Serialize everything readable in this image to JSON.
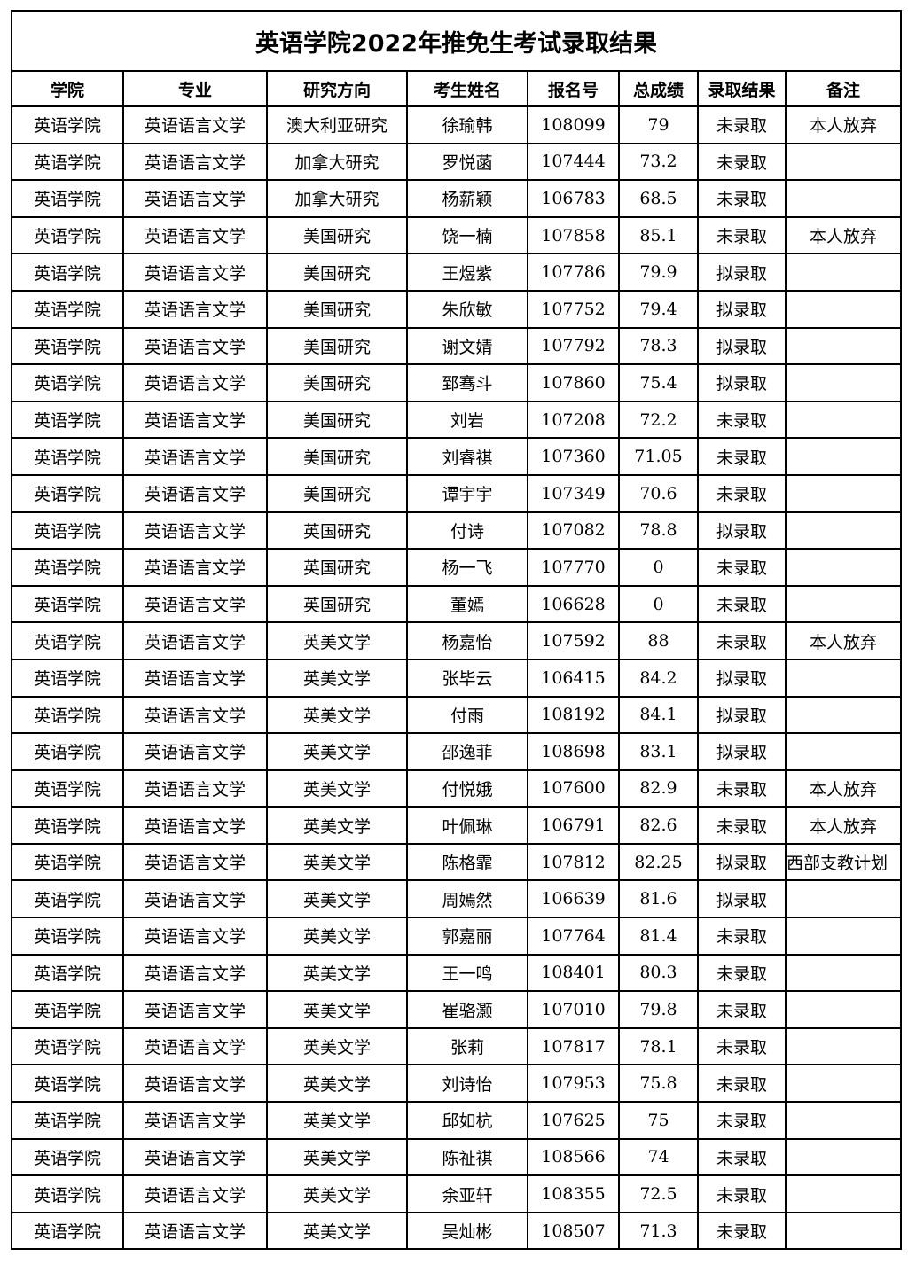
{
  "title": "英语学院2022年推免生考试录取结果",
  "headers": [
    "学院",
    "专业",
    "研究方向",
    "考生姓名",
    "报名号",
    "总成绩",
    "录取结果",
    "备注"
  ],
  "rows": [
    [
      "英语学院",
      "英语语言文学",
      "澳大利亚研究",
      "徐瑜韩",
      "108099",
      "79",
      "未录取",
      "本人放弃"
    ],
    [
      "英语学院",
      "英语语言文学",
      "加拿大研究",
      "罗悦菡",
      "107444",
      "73.2",
      "未录取",
      ""
    ],
    [
      "英语学院",
      "英语语言文学",
      "加拿大研究",
      "杨薪颖",
      "106783",
      "68.5",
      "未录取",
      ""
    ],
    [
      "英语学院",
      "英语语言文学",
      "美国研究",
      "饶一楠",
      "107858",
      "85.1",
      "未录取",
      "本人放弃"
    ],
    [
      "英语学院",
      "英语语言文学",
      "美国研究",
      "王煜紫",
      "107786",
      "79.9",
      "拟录取",
      ""
    ],
    [
      "英语学院",
      "英语语言文学",
      "美国研究",
      "朱欣敏",
      "107752",
      "79.4",
      "拟录取",
      ""
    ],
    [
      "英语学院",
      "英语语言文学",
      "美国研究",
      "谢文婧",
      "107792",
      "78.3",
      "拟录取",
      ""
    ],
    [
      "英语学院",
      "英语语言文学",
      "美国研究",
      "郅骞斗",
      "107860",
      "75.4",
      "拟录取",
      ""
    ],
    [
      "英语学院",
      "英语语言文学",
      "美国研究",
      "刘岩",
      "107208",
      "72.2",
      "未录取",
      ""
    ],
    [
      "英语学院",
      "英语语言文学",
      "美国研究",
      "刘睿祺",
      "107360",
      "71.05",
      "未录取",
      ""
    ],
    [
      "英语学院",
      "英语语言文学",
      "美国研究",
      "谭宇宇",
      "107349",
      "70.6",
      "未录取",
      ""
    ],
    [
      "英语学院",
      "英语语言文学",
      "英国研究",
      "付诗",
      "107082",
      "78.8",
      "拟录取",
      ""
    ],
    [
      "英语学院",
      "英语语言文学",
      "英国研究",
      "杨一飞",
      "107770",
      "0",
      "未录取",
      ""
    ],
    [
      "英语学院",
      "英语语言文学",
      "英国研究",
      "董嫣",
      "106628",
      "0",
      "未录取",
      ""
    ],
    [
      "英语学院",
      "英语语言文学",
      "英美文学",
      "杨嘉怡",
      "107592",
      "88",
      "未录取",
      "本人放弃"
    ],
    [
      "英语学院",
      "英语语言文学",
      "英美文学",
      "张毕云",
      "106415",
      "84.2",
      "拟录取",
      ""
    ],
    [
      "英语学院",
      "英语语言文学",
      "英美文学",
      "付雨",
      "108192",
      "84.1",
      "拟录取",
      ""
    ],
    [
      "英语学院",
      "英语语言文学",
      "英美文学",
      "邵逸菲",
      "108698",
      "83.1",
      "拟录取",
      ""
    ],
    [
      "英语学院",
      "英语语言文学",
      "英美文学",
      "付悦娥",
      "107600",
      "82.9",
      "未录取",
      "本人放弃"
    ],
    [
      "英语学院",
      "英语语言文学",
      "英美文学",
      "叶佩琳",
      "106791",
      "82.6",
      "未录取",
      "本人放弃"
    ],
    [
      "英语学院",
      "英语语言文学",
      "英美文学",
      "陈格霏",
      "107812",
      "82.25",
      "拟录取",
      "西部支教计划"
    ],
    [
      "英语学院",
      "英语语言文学",
      "英美文学",
      "周嫣然",
      "106639",
      "81.6",
      "拟录取",
      ""
    ],
    [
      "英语学院",
      "英语语言文学",
      "英美文学",
      "郭嘉丽",
      "107764",
      "81.4",
      "未录取",
      ""
    ],
    [
      "英语学院",
      "英语语言文学",
      "英美文学",
      "王一鸣",
      "108401",
      "80.3",
      "未录取",
      ""
    ],
    [
      "英语学院",
      "英语语言文学",
      "英美文学",
      "崔骆灏",
      "107010",
      "79.8",
      "未录取",
      ""
    ],
    [
      "英语学院",
      "英语语言文学",
      "英美文学",
      "张莉",
      "107817",
      "78.1",
      "未录取",
      ""
    ],
    [
      "英语学院",
      "英语语言文学",
      "英美文学",
      "刘诗怡",
      "107953",
      "75.8",
      "未录取",
      ""
    ],
    [
      "英语学院",
      "英语语言文学",
      "英美文学",
      "邱如杭",
      "107625",
      "75",
      "未录取",
      ""
    ],
    [
      "英语学院",
      "英语语言文学",
      "英美文学",
      "陈祉祺",
      "108566",
      "74",
      "未录取",
      ""
    ],
    [
      "英语学院",
      "英语语言文学",
      "英美文学",
      "余亚轩",
      "108355",
      "72.5",
      "未录取",
      ""
    ],
    [
      "英语学院",
      "英语语言文学",
      "英美文学",
      "吴灿彬",
      "108507",
      "71.3",
      "未录取",
      ""
    ]
  ]
}
